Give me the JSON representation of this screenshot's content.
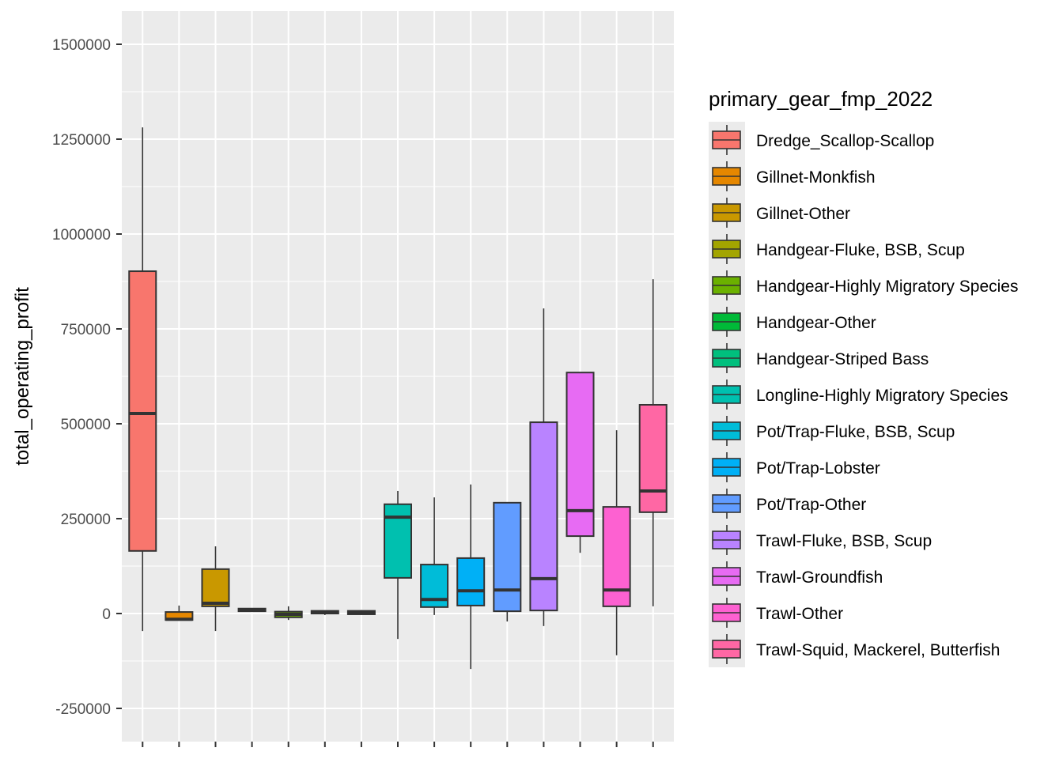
{
  "chart_data": {
    "type": "boxplot",
    "title": "",
    "xlabel": "",
    "ylabel": "total_operating_profit",
    "ylim": [
      -340000,
      1590000
    ],
    "yticks": [
      -250000,
      0,
      250000,
      500000,
      750000,
      1000000,
      1250000,
      1500000
    ],
    "ytick_labels": [
      "-250000",
      "0",
      "250000",
      "500000",
      "750000",
      "1000000",
      "1250000",
      "1500000"
    ],
    "grid": true,
    "legend": {
      "title": "primary_gear_fmp_2022",
      "placement": "right"
    },
    "categories": [
      "Dredge_Scallop-Scallop",
      "Gillnet-Monkfish",
      "Gillnet-Other",
      "Handgear-Fluke, BSB, Scup",
      "Handgear-Highly Migratory Species",
      "Handgear-Other",
      "Handgear-Striped Bass",
      "Longline-Highly Migratory Species",
      "Pot/Trap-Fluke, BSB, Scup",
      "Pot/Trap-Lobster",
      "Pot/Trap-Other",
      "Trawl-Fluke, BSB, Scup",
      "Trawl-Groundfish",
      "Trawl-Other",
      "Trawl-Squid, Mackerel, Butterfish"
    ],
    "colors": [
      "#F8766D",
      "#E58700",
      "#C99800",
      "#A3A500",
      "#6BB100",
      "#00BA38",
      "#00BF7D",
      "#00C0AF",
      "#00BCD8",
      "#00B0F6",
      "#619CFF",
      "#B983FF",
      "#E76BF3",
      "#FD61D1",
      "#FF67A4"
    ],
    "series": [
      {
        "name": "Dredge_Scallop-Scallop",
        "whisker_low": -46000,
        "q1": 165000,
        "median": 527000,
        "q3": 902000,
        "whisker_high": 1281000
      },
      {
        "name": "Gillnet-Monkfish",
        "whisker_low": -17000,
        "q1": -17000,
        "median": -15000,
        "q3": 4000,
        "whisker_high": 21000
      },
      {
        "name": "Gillnet-Other",
        "whisker_low": -46000,
        "q1": 19000,
        "median": 27000,
        "q3": 117000,
        "whisker_high": 177000
      },
      {
        "name": "Handgear-Fluke, BSB, Scup",
        "whisker_low": 6000,
        "q1": 6000,
        "median": 9000,
        "q3": 13000,
        "whisker_high": 13000
      },
      {
        "name": "Handgear-Highly Migratory Species",
        "whisker_low": -17000,
        "q1": -10000,
        "median": -2000,
        "q3": 5000,
        "whisker_high": 19000
      },
      {
        "name": "Handgear-Other",
        "whisker_low": -4000,
        "q1": 0,
        "median": 3000,
        "q3": 7000,
        "whisker_high": 7000
      },
      {
        "name": "Handgear-Striped Bass",
        "whisker_low": -2000,
        "q1": -2000,
        "median": 2000,
        "q3": 7000,
        "whisker_high": 9000
      },
      {
        "name": "Longline-Highly Migratory Species",
        "whisker_low": -67000,
        "q1": 94000,
        "median": 254000,
        "q3": 288000,
        "whisker_high": 323000
      },
      {
        "name": "Pot/Trap-Fluke, BSB, Scup",
        "whisker_low": -4000,
        "q1": 17000,
        "median": 37000,
        "q3": 129000,
        "whisker_high": 306000
      },
      {
        "name": "Pot/Trap-Lobster",
        "whisker_low": -146000,
        "q1": 21000,
        "median": 60000,
        "q3": 146000,
        "whisker_high": 340000
      },
      {
        "name": "Pot/Trap-Other",
        "whisker_low": -21000,
        "q1": 6000,
        "median": 62000,
        "q3": 292000,
        "whisker_high": 292000
      },
      {
        "name": "Trawl-Fluke, BSB, Scup",
        "whisker_low": -33000,
        "q1": 8000,
        "median": 92000,
        "q3": 504000,
        "whisker_high": 804000
      },
      {
        "name": "Trawl-Groundfish",
        "whisker_low": 160000,
        "q1": 204000,
        "median": 271000,
        "q3": 635000,
        "whisker_high": 635000
      },
      {
        "name": "Trawl-Other",
        "whisker_low": -110000,
        "q1": 19000,
        "median": 62000,
        "q3": 281000,
        "whisker_high": 483000
      },
      {
        "name": "Trawl-Squid, Mackerel, Butterfish",
        "whisker_low": 19000,
        "q1": 267000,
        "median": 323000,
        "q3": 550000,
        "whisker_high": 881000
      }
    ]
  }
}
